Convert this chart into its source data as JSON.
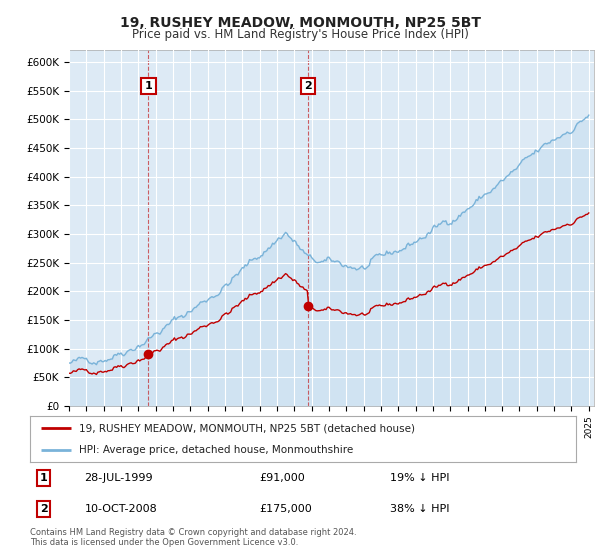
{
  "title": "19, RUSHEY MEADOW, MONMOUTH, NP25 5BT",
  "subtitle": "Price paid vs. HM Land Registry's House Price Index (HPI)",
  "ylim": [
    0,
    620000
  ],
  "yticks": [
    0,
    50000,
    100000,
    150000,
    200000,
    250000,
    300000,
    350000,
    400000,
    450000,
    500000,
    550000,
    600000
  ],
  "ytick_labels": [
    "£0",
    "£50K",
    "£100K",
    "£150K",
    "£200K",
    "£250K",
    "£300K",
    "£350K",
    "£400K",
    "£450K",
    "£500K",
    "£550K",
    "£600K"
  ],
  "hpi_color": "#7ab3d9",
  "hpi_fill_color": "#c8dff0",
  "price_color": "#c00000",
  "sale1_year": 1999.58,
  "sale1_price": 91000,
  "sale2_year": 2008.78,
  "sale2_price": 175000,
  "legend_line1": "19, RUSHEY MEADOW, MONMOUTH, NP25 5BT (detached house)",
  "legend_line2": "HPI: Average price, detached house, Monmouthshire",
  "footnote": "Contains HM Land Registry data © Crown copyright and database right 2024.\nThis data is licensed under the Open Government Licence v3.0.",
  "plot_bg": "#ffffff",
  "chart_bg": "#ddeaf5",
  "grid_color": "#ffffff"
}
